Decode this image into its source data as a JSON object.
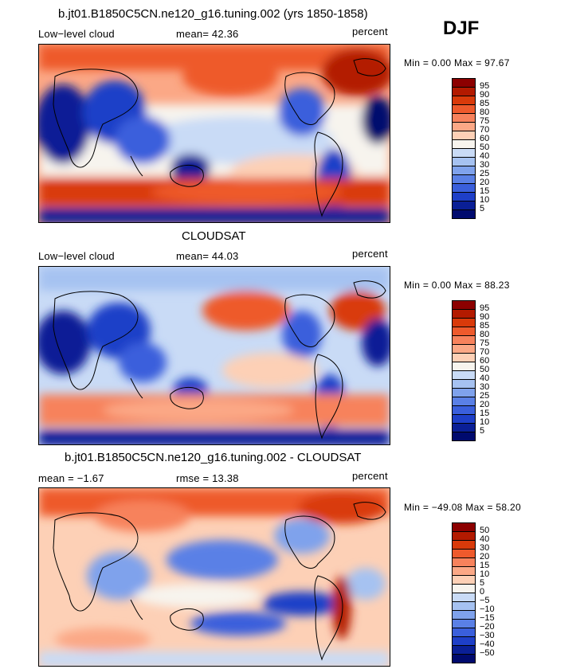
{
  "season": "DJF",
  "panels": [
    {
      "title": "b.jt01.B1850C5CN.ne120_g16.tuning.002 (yrs 1850-1858)",
      "left_label": "Low−level cloud",
      "center_label": "mean=  42.36",
      "right_label": "percent",
      "minmax": "Min =    0.00 Max =  97.67",
      "colorbar": {
        "labels": [
          "95",
          "90",
          "85",
          "80",
          "75",
          "70",
          "60",
          "50",
          "40",
          "30",
          "25",
          "20",
          "15",
          "10",
          "5"
        ],
        "colors": [
          "#8c0000",
          "#b31a00",
          "#d93a0a",
          "#ee5a2c",
          "#f7825c",
          "#fba886",
          "#fdd0b6",
          "#f7f4ee",
          "#c9dbf6",
          "#a6c2f1",
          "#7fa2ec",
          "#5a80e6",
          "#3a5fdc",
          "#1e3fc8",
          "#0a1f96",
          "#000a6e"
        ]
      }
    },
    {
      "title": "CLOUDSAT",
      "left_label": "Low−level cloud",
      "center_label": "mean=  44.03",
      "right_label": "percent",
      "minmax": "Min =    0.00 Max =  88.23",
      "colorbar": {
        "labels": [
          "95",
          "90",
          "85",
          "80",
          "75",
          "70",
          "60",
          "50",
          "40",
          "30",
          "25",
          "20",
          "15",
          "10",
          "5"
        ],
        "colors": [
          "#8c0000",
          "#b31a00",
          "#d93a0a",
          "#ee5a2c",
          "#f7825c",
          "#fba886",
          "#fdd0b6",
          "#f7f4ee",
          "#c9dbf6",
          "#a6c2f1",
          "#7fa2ec",
          "#5a80e6",
          "#3a5fdc",
          "#1e3fc8",
          "#0a1f96",
          "#000a6e"
        ]
      }
    },
    {
      "title": "b.jt01.B1850C5CN.ne120_g16.tuning.002 - CLOUDSAT",
      "left_label": "mean =   −1.67",
      "center_label": "rmse =   13.38",
      "right_label": "percent",
      "minmax": "Min = −49.08 Max =  58.20",
      "colorbar": {
        "labels": [
          "50",
          "40",
          "30",
          "20",
          "15",
          "10",
          "5",
          "0",
          "−5",
          "−10",
          "−15",
          "−20",
          "−30",
          "−40",
          "−50"
        ],
        "colors": [
          "#8c0000",
          "#b31a00",
          "#d93a0a",
          "#ee5a2c",
          "#f7825c",
          "#fba886",
          "#fdd0b6",
          "#f7f4ee",
          "#c9dbf6",
          "#a6c2f1",
          "#7fa2ec",
          "#5a80e6",
          "#3a5fdc",
          "#1e3fc8",
          "#0a1f96",
          "#000a6e"
        ]
      }
    }
  ]
}
